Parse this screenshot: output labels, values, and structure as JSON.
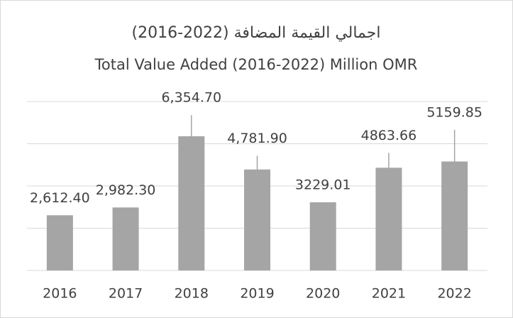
{
  "chart_data": {
    "type": "bar",
    "title": "اجمالي القيمة المضافة (2022-2016)",
    "subtitle": "Total Value Added (2016-2022) Million OMR",
    "categories": [
      "2016",
      "2017",
      "2018",
      "2019",
      "2020",
      "2021",
      "2022"
    ],
    "values": [
      2612.4,
      2982.3,
      6354.7,
      4781.9,
      3229.01,
      4863.66,
      5159.85
    ],
    "value_labels": [
      "2,612.40",
      "2,982.30",
      "6,354.70",
      "4,781.90",
      "3229.01",
      "4863.66",
      "5159.85"
    ],
    "errors": [
      null,
      null,
      1000,
      650,
      null,
      700,
      1500
    ],
    "color": "#a5a5a5",
    "ylim": [
      0,
      8000
    ],
    "yticks": [
      0,
      2000,
      4000,
      6000,
      8000
    ],
    "grid": true
  }
}
